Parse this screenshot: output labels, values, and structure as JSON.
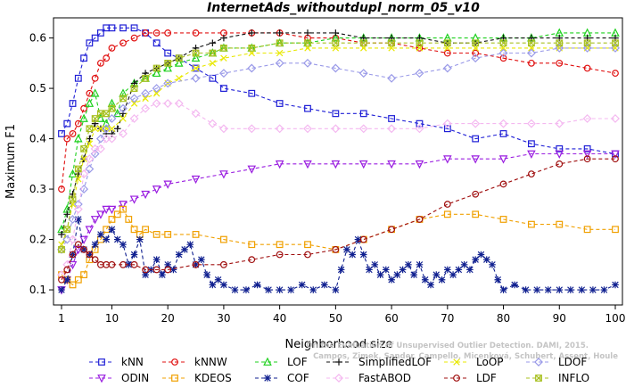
{
  "chart_data": {
    "type": "line",
    "title": "InternetAds_withoutdupl_norm_05_v10",
    "xlabel": "Neighborhood size",
    "ylabel": "Maximum F1",
    "xlim": [
      1,
      100
    ],
    "ylim": [
      0.07,
      0.64
    ],
    "xticks": [
      1,
      10,
      20,
      30,
      40,
      50,
      60,
      70,
      80,
      90,
      100
    ],
    "yticks": [
      0.1,
      0.2,
      0.3,
      0.4,
      0.5,
      0.6
    ],
    "grid": false,
    "legend_position": "bottom",
    "watermark": [
      "Campos, Zimek, Sander, Campello, Micenková, Schubert, Assent, Houle",
      "On the Evaluation of Unsupervised Outlier Detection. DAMI, 2015."
    ],
    "series": [
      {
        "name": "kNN",
        "color": "#1f1fd6",
        "marker": "square",
        "x": [
          1,
          2,
          3,
          4,
          5,
          6,
          7,
          8,
          9,
          10,
          12,
          14,
          16,
          18,
          20,
          22,
          25,
          28,
          30,
          35,
          40,
          45,
          50,
          55,
          60,
          65,
          70,
          75,
          80,
          85,
          90,
          95,
          100
        ],
        "y": [
          0.41,
          0.43,
          0.47,
          0.52,
          0.56,
          0.59,
          0.6,
          0.61,
          0.62,
          0.62,
          0.62,
          0.62,
          0.61,
          0.59,
          0.57,
          0.56,
          0.54,
          0.52,
          0.5,
          0.49,
          0.47,
          0.46,
          0.45,
          0.45,
          0.44,
          0.43,
          0.42,
          0.4,
          0.41,
          0.39,
          0.38,
          0.38,
          0.37
        ]
      },
      {
        "name": "kNNW",
        "color": "#e01010",
        "marker": "circle",
        "x": [
          1,
          2,
          3,
          4,
          5,
          6,
          7,
          8,
          9,
          10,
          12,
          14,
          16,
          18,
          20,
          25,
          30,
          35,
          40,
          45,
          50,
          55,
          60,
          65,
          70,
          75,
          80,
          85,
          90,
          95,
          100
        ],
        "y": [
          0.3,
          0.4,
          0.41,
          0.43,
          0.46,
          0.49,
          0.52,
          0.55,
          0.56,
          0.58,
          0.59,
          0.6,
          0.61,
          0.61,
          0.61,
          0.61,
          0.61,
          0.61,
          0.61,
          0.6,
          0.6,
          0.59,
          0.59,
          0.58,
          0.57,
          0.57,
          0.56,
          0.55,
          0.55,
          0.54,
          0.53
        ]
      },
      {
        "name": "LOF",
        "color": "#1ed01e",
        "marker": "triangle",
        "x": [
          1,
          2,
          3,
          4,
          5,
          6,
          7,
          8,
          9,
          10,
          11,
          12,
          14,
          16,
          18,
          20,
          22,
          25,
          28,
          30,
          35,
          40,
          45,
          50,
          55,
          60,
          65,
          70,
          75,
          80,
          85,
          90,
          95,
          100
        ],
        "y": [
          0.22,
          0.26,
          0.33,
          0.4,
          0.44,
          0.47,
          0.49,
          0.44,
          0.43,
          0.47,
          0.45,
          0.49,
          0.51,
          0.52,
          0.53,
          0.54,
          0.55,
          0.56,
          0.57,
          0.58,
          0.58,
          0.59,
          0.59,
          0.6,
          0.6,
          0.6,
          0.6,
          0.6,
          0.6,
          0.6,
          0.6,
          0.61,
          0.61,
          0.61
        ]
      },
      {
        "name": "SimplifiedLOF",
        "color": "#111111",
        "marker": "plus",
        "x": [
          1,
          2,
          3,
          4,
          5,
          6,
          7,
          8,
          9,
          10,
          11,
          12,
          14,
          16,
          18,
          20,
          22,
          25,
          28,
          30,
          35,
          40,
          45,
          50,
          55,
          60,
          65,
          70,
          75,
          80,
          85,
          90,
          95,
          100
        ],
        "y": [
          0.21,
          0.25,
          0.29,
          0.33,
          0.36,
          0.4,
          0.43,
          0.42,
          0.41,
          0.41,
          0.42,
          0.45,
          0.51,
          0.53,
          0.54,
          0.55,
          0.56,
          0.58,
          0.59,
          0.6,
          0.61,
          0.61,
          0.61,
          0.61,
          0.6,
          0.6,
          0.6,
          0.59,
          0.59,
          0.6,
          0.6,
          0.6,
          0.6,
          0.6
        ]
      },
      {
        "name": "LoOP",
        "color": "#e8e800",
        "marker": "x",
        "x": [
          1,
          2,
          3,
          4,
          5,
          6,
          7,
          8,
          9,
          10,
          12,
          14,
          16,
          18,
          20,
          22,
          25,
          28,
          30,
          35,
          40,
          45,
          50,
          55,
          60,
          65,
          70,
          75,
          80,
          85,
          90,
          95,
          100
        ],
        "y": [
          0.19,
          0.22,
          0.27,
          0.32,
          0.36,
          0.39,
          0.42,
          0.42,
          0.42,
          0.42,
          0.44,
          0.47,
          0.48,
          0.49,
          0.51,
          0.52,
          0.54,
          0.55,
          0.56,
          0.57,
          0.57,
          0.58,
          0.58,
          0.58,
          0.58,
          0.58,
          0.58,
          0.58,
          0.58,
          0.58,
          0.58,
          0.58,
          0.58
        ]
      },
      {
        "name": "LDOF",
        "color": "#9a9ae8",
        "marker": "diamond",
        "x": [
          1,
          2,
          3,
          4,
          5,
          6,
          7,
          8,
          9,
          10,
          12,
          14,
          16,
          18,
          20,
          25,
          30,
          35,
          40,
          45,
          50,
          55,
          60,
          65,
          70,
          75,
          80,
          85,
          90,
          95,
          100
        ],
        "y": [
          0.18,
          0.2,
          0.24,
          0.27,
          0.3,
          0.34,
          0.37,
          0.4,
          0.42,
          0.44,
          0.46,
          0.48,
          0.49,
          0.5,
          0.51,
          0.52,
          0.53,
          0.54,
          0.55,
          0.55,
          0.54,
          0.53,
          0.52,
          0.53,
          0.54,
          0.56,
          0.57,
          0.57,
          0.58,
          0.58,
          0.58
        ]
      },
      {
        "name": "ODIN",
        "color": "#9a1ee0",
        "marker": "triangle-down",
        "x": [
          1,
          2,
          3,
          4,
          5,
          6,
          7,
          8,
          9,
          10,
          12,
          14,
          16,
          18,
          20,
          25,
          30,
          35,
          40,
          45,
          50,
          55,
          60,
          65,
          70,
          75,
          80,
          85,
          90,
          95,
          100
        ],
        "y": [
          0.1,
          0.12,
          0.15,
          0.18,
          0.2,
          0.22,
          0.24,
          0.25,
          0.26,
          0.26,
          0.27,
          0.28,
          0.29,
          0.3,
          0.31,
          0.32,
          0.33,
          0.34,
          0.35,
          0.35,
          0.35,
          0.35,
          0.35,
          0.35,
          0.36,
          0.36,
          0.36,
          0.37,
          0.37,
          0.37,
          0.37
        ]
      },
      {
        "name": "KDEOS",
        "color": "#f0a000",
        "marker": "square",
        "x": [
          1,
          2,
          3,
          4,
          5,
          6,
          7,
          8,
          9,
          10,
          11,
          12,
          13,
          14,
          15,
          16,
          18,
          20,
          25,
          30,
          35,
          40,
          45,
          50,
          55,
          60,
          65,
          70,
          75,
          80,
          85,
          90,
          95,
          100
        ],
        "y": [
          0.13,
          0.12,
          0.11,
          0.12,
          0.13,
          0.16,
          0.18,
          0.2,
          0.22,
          0.24,
          0.25,
          0.26,
          0.24,
          0.22,
          0.21,
          0.22,
          0.21,
          0.21,
          0.21,
          0.2,
          0.19,
          0.19,
          0.19,
          0.18,
          0.2,
          0.22,
          0.24,
          0.25,
          0.25,
          0.24,
          0.23,
          0.23,
          0.22,
          0.22
        ]
      },
      {
        "name": "COF",
        "color": "#102090",
        "marker": "star",
        "x": [
          1,
          2,
          3,
          4,
          5,
          6,
          7,
          8,
          9,
          10,
          11,
          12,
          13,
          14,
          15,
          16,
          17,
          18,
          19,
          20,
          21,
          22,
          23,
          24,
          25,
          26,
          27,
          28,
          29,
          30,
          32,
          34,
          36,
          38,
          40,
          42,
          44,
          46,
          48,
          50,
          51,
          52,
          53,
          54,
          55,
          56,
          57,
          58,
          59,
          60,
          61,
          62,
          63,
          64,
          65,
          66,
          67,
          68,
          69,
          70,
          71,
          72,
          73,
          74,
          75,
          76,
          77,
          78,
          79,
          80,
          82,
          84,
          86,
          88,
          90,
          92,
          94,
          96,
          98,
          100
        ],
        "y": [
          0.1,
          0.12,
          0.17,
          0.24,
          0.18,
          0.17,
          0.19,
          0.21,
          0.2,
          0.22,
          0.2,
          0.19,
          0.15,
          0.17,
          0.2,
          0.13,
          0.14,
          0.16,
          0.13,
          0.15,
          0.14,
          0.17,
          0.18,
          0.19,
          0.15,
          0.16,
          0.13,
          0.11,
          0.12,
          0.11,
          0.1,
          0.1,
          0.11,
          0.1,
          0.1,
          0.1,
          0.11,
          0.1,
          0.11,
          0.1,
          0.14,
          0.18,
          0.17,
          0.2,
          0.17,
          0.14,
          0.15,
          0.13,
          0.14,
          0.12,
          0.13,
          0.14,
          0.15,
          0.13,
          0.15,
          0.12,
          0.11,
          0.13,
          0.12,
          0.14,
          0.13,
          0.14,
          0.15,
          0.14,
          0.16,
          0.17,
          0.16,
          0.15,
          0.12,
          0.1,
          0.11,
          0.1,
          0.1,
          0.1,
          0.1,
          0.1,
          0.1,
          0.1,
          0.1,
          0.11
        ]
      },
      {
        "name": "FastABOD",
        "color": "#f4b8f0",
        "marker": "diamond",
        "x": [
          1,
          2,
          3,
          4,
          5,
          6,
          7,
          8,
          9,
          10,
          12,
          14,
          16,
          18,
          20,
          22,
          25,
          28,
          30,
          35,
          40,
          45,
          50,
          55,
          60,
          65,
          70,
          75,
          80,
          85,
          90,
          95,
          100
        ],
        "y": [
          0.13,
          0.15,
          0.2,
          0.26,
          0.33,
          0.36,
          0.38,
          0.38,
          0.4,
          0.4,
          0.41,
          0.44,
          0.46,
          0.47,
          0.47,
          0.47,
          0.45,
          0.43,
          0.42,
          0.42,
          0.42,
          0.42,
          0.42,
          0.42,
          0.42,
          0.42,
          0.43,
          0.43,
          0.43,
          0.43,
          0.43,
          0.44,
          0.44
        ]
      },
      {
        "name": "LDF",
        "color": "#a01010",
        "marker": "circle",
        "x": [
          1,
          2,
          3,
          4,
          5,
          6,
          7,
          8,
          9,
          10,
          12,
          14,
          16,
          18,
          20,
          25,
          30,
          35,
          40,
          45,
          50,
          55,
          60,
          65,
          70,
          75,
          80,
          85,
          90,
          95,
          100
        ],
        "y": [
          0.12,
          0.14,
          0.17,
          0.19,
          0.18,
          0.17,
          0.16,
          0.15,
          0.15,
          0.15,
          0.15,
          0.15,
          0.14,
          0.14,
          0.14,
          0.15,
          0.15,
          0.16,
          0.17,
          0.17,
          0.18,
          0.2,
          0.22,
          0.24,
          0.27,
          0.29,
          0.31,
          0.33,
          0.35,
          0.36,
          0.36
        ]
      },
      {
        "name": "INFLO",
        "color": "#a8c020",
        "marker": "x-square",
        "x": [
          1,
          2,
          3,
          4,
          5,
          6,
          7,
          8,
          9,
          10,
          12,
          14,
          16,
          18,
          20,
          22,
          25,
          28,
          30,
          35,
          40,
          45,
          50,
          55,
          60,
          65,
          70,
          75,
          80,
          85,
          90,
          95,
          100
        ],
        "y": [
          0.18,
          0.22,
          0.28,
          0.34,
          0.38,
          0.42,
          0.44,
          0.45,
          0.45,
          0.46,
          0.48,
          0.5,
          0.52,
          0.54,
          0.55,
          0.56,
          0.57,
          0.57,
          0.58,
          0.58,
          0.59,
          0.59,
          0.59,
          0.59,
          0.59,
          0.59,
          0.59,
          0.59,
          0.59,
          0.59,
          0.59,
          0.59,
          0.59
        ]
      }
    ]
  }
}
